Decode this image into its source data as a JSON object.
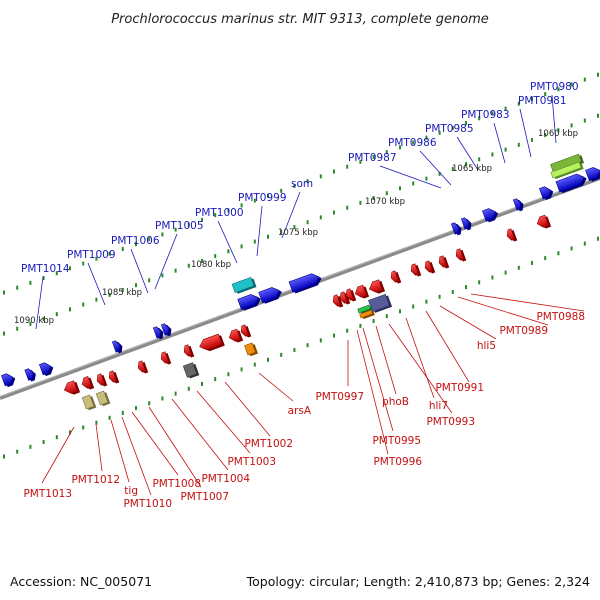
{
  "title": "Prochlorococcus marinus str. MIT 9313, complete genome",
  "footer": {
    "accession": "Accession: NC_005071",
    "topology": "Topology: circular; Length: 2,410,873 bp; Genes: 2,324"
  },
  "colors": {
    "forward_strand": "#1010e0",
    "reverse_strand": "#e01010",
    "label_forward": "#1a1ab8",
    "label_reverse": "#c41010",
    "backbone": "#777777",
    "tick": "#2a8a2a",
    "green_gene": "#7ab63a",
    "cyan_gene": "#20c0c8",
    "orange_gene": "#f0900a",
    "gray_gene": "#666666",
    "khaki_gene": "#c8bd7a",
    "slate_gene": "#565c98"
  },
  "scale_labels": [
    "1060 kbp",
    "1065 kbp",
    "1070 kbp",
    "1075 kbp",
    "1080 kbp",
    "1085 kbp",
    "1090 kbp"
  ],
  "forward_labels": [
    "PMT0980",
    "PMT0981",
    "PMT0983",
    "PMT0985",
    "PMT0986",
    "PMT0987",
    "som",
    "PMT0999",
    "PMT1000",
    "PMT1005",
    "PMT1006",
    "PMT1009",
    "PMT1014"
  ],
  "reverse_labels": [
    "PMT0988",
    "PMT0989",
    "hli5",
    "PMT0991",
    "hli7",
    "PMT0993",
    "phoB",
    "PMT0995",
    "PMT0996",
    "PMT0997",
    "arsA",
    "PMT1002",
    "PMT1003",
    "PMT1004",
    "PMT1007",
    "PMT1008",
    "PMT1010",
    "tig",
    "PMT1012",
    "PMT1013"
  ]
}
